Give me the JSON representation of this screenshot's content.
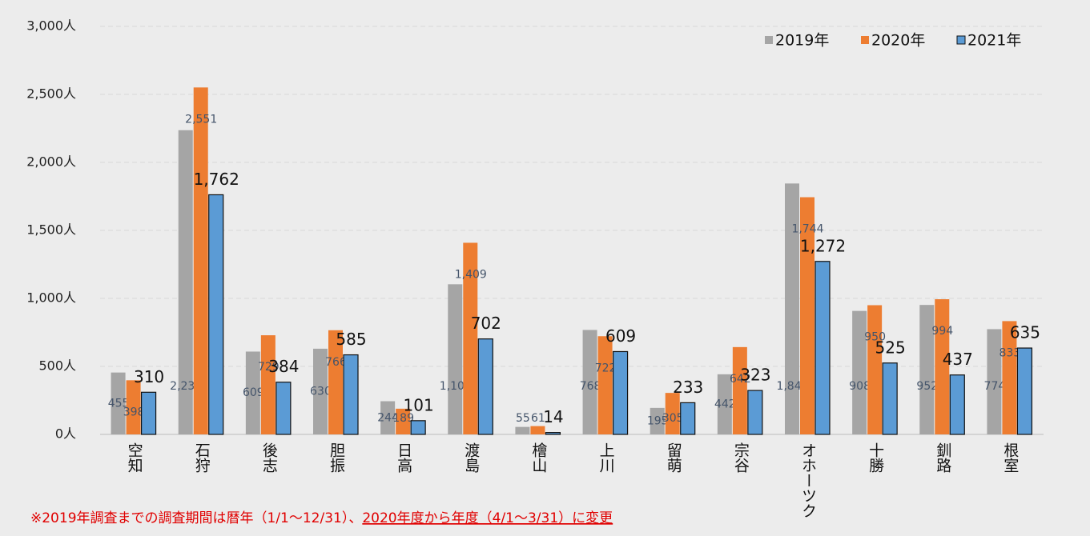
{
  "chart_data": {
    "type": "bar",
    "categories": [
      "空知",
      "石狩",
      "後志",
      "胆振",
      "日高",
      "渡島",
      "檜山",
      "上川",
      "留萌",
      "宗谷",
      "オホーツク",
      "十勝",
      "釧路",
      "根室"
    ],
    "series": [
      {
        "name": "2019年",
        "color": "#a5a5a5",
        "values": [
          455,
          2237,
          609,
          630,
          244,
          1104,
          55,
          768,
          195,
          442,
          1845,
          908,
          952,
          774
        ],
        "value_labels": [
          "455",
          "2,237",
          "609",
          "630",
          "244",
          "1,104",
          "55",
          "768",
          "195",
          "442",
          "1,845",
          "908",
          "952",
          "774"
        ]
      },
      {
        "name": "2020年",
        "color": "#ed7d31",
        "values": [
          398,
          2551,
          729,
          766,
          189,
          1409,
          61,
          722,
          305,
          642,
          1744,
          950,
          994,
          833
        ],
        "value_labels": [
          "398",
          "2,551",
          "729",
          "766",
          "189",
          "1,409",
          "61",
          "722",
          "305",
          "642",
          "1,744",
          "950",
          "994",
          "833"
        ]
      },
      {
        "name": "2021年",
        "color": "#5b9bd5",
        "values": [
          310,
          1762,
          384,
          585,
          101,
          702,
          14,
          609,
          233,
          323,
          1272,
          525,
          437,
          635
        ],
        "value_labels": [
          "310",
          "1,762",
          "384",
          "585",
          "101",
          "702",
          "14",
          "609",
          "233",
          "323",
          "1,272",
          "525",
          "437",
          "635"
        ]
      }
    ],
    "ylim": [
      0,
      3000
    ],
    "yticks": [
      {
        "value": 0,
        "label": "0人"
      },
      {
        "value": 500,
        "label": "500人"
      },
      {
        "value": 1000,
        "label": "1,000人"
      },
      {
        "value": 1500,
        "label": "1,500人"
      },
      {
        "value": 2000,
        "label": "2,000人"
      },
      {
        "value": 2500,
        "label": "2,500人"
      },
      {
        "value": 3000,
        "label": "3,000人"
      }
    ],
    "grid": true,
    "legend": "top-right",
    "note": "※2019年調査までの調査期間は暦年（1/1～12/31）、",
    "note_underlined": "2020年度から年度（4/1～3/31）に変更"
  }
}
